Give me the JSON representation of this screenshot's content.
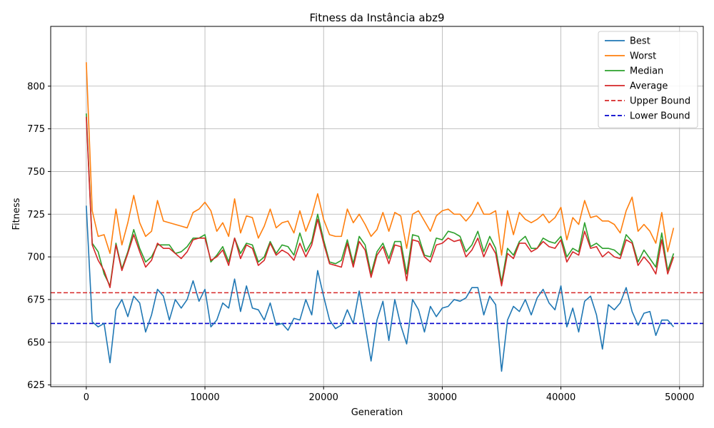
{
  "chart_data": {
    "type": "line",
    "title": "Fitness da Instância abz9",
    "xlabel": "Generation",
    "ylabel": "Fitness",
    "xlim": [
      -3000,
      52000
    ],
    "ylim": [
      624,
      835
    ],
    "xticks": [
      0,
      10000,
      20000,
      30000,
      40000,
      50000
    ],
    "yticks": [
      625,
      650,
      675,
      700,
      725,
      750,
      775,
      800
    ],
    "grid": true,
    "legend_position": "top-right",
    "x": [
      0,
      500,
      1000,
      1500,
      2000,
      2500,
      3000,
      3500,
      4000,
      4500,
      5000,
      5500,
      6000,
      6500,
      7000,
      7500,
      8000,
      8500,
      9000,
      9500,
      10000,
      10500,
      11000,
      11500,
      12000,
      12500,
      13000,
      13500,
      14000,
      14500,
      15000,
      15500,
      16000,
      16500,
      17000,
      17500,
      18000,
      18500,
      19000,
      19500,
      20000,
      20500,
      21000,
      21500,
      22000,
      22500,
      23000,
      23500,
      24000,
      24500,
      25000,
      25500,
      26000,
      26500,
      27000,
      27500,
      28000,
      28500,
      29000,
      29500,
      30000,
      30500,
      31000,
      31500,
      32000,
      32500,
      33000,
      33500,
      34000,
      34500,
      35000,
      35500,
      36000,
      36500,
      37000,
      37500,
      38000,
      38500,
      39000,
      39500,
      40000,
      40500,
      41000,
      41500,
      42000,
      42500,
      43000,
      43500,
      44000,
      44500,
      45000,
      45500,
      46000,
      46500,
      47000,
      47500,
      48000,
      48500,
      49000,
      49500
    ],
    "series": [
      {
        "name": "Best",
        "color": "#1f77b4",
        "dash": "solid",
        "values": [
          730,
          662,
          659,
          661,
          638,
          669,
          675,
          665,
          677,
          673,
          656,
          666,
          681,
          677,
          663,
          675,
          670,
          675,
          686,
          674,
          681,
          659,
          663,
          673,
          670,
          687,
          668,
          683,
          670,
          669,
          663,
          673,
          660,
          661,
          657,
          664,
          663,
          675,
          666,
          692,
          677,
          663,
          658,
          660,
          669,
          661,
          680,
          660,
          639,
          663,
          674,
          651,
          675,
          660,
          649,
          675,
          669,
          656,
          671,
          665,
          670,
          671,
          675,
          674,
          676,
          682,
          682,
          666,
          677,
          672,
          633,
          663,
          671,
          668,
          675,
          666,
          676,
          681,
          673,
          669,
          683,
          659,
          670,
          656,
          674,
          677,
          666,
          646,
          672,
          669,
          673,
          682,
          668,
          660,
          667,
          668,
          654,
          663,
          663,
          659
        ]
      },
      {
        "name": "Worst",
        "color": "#ff7f0e",
        "dash": "solid",
        "values": [
          814,
          727,
          712,
          713,
          702,
          728,
          707,
          720,
          736,
          720,
          712,
          715,
          733,
          721,
          720,
          719,
          718,
          717,
          726,
          728,
          732,
          727,
          715,
          720,
          712,
          734,
          714,
          724,
          723,
          711,
          718,
          728,
          717,
          720,
          721,
          714,
          727,
          715,
          724,
          737,
          722,
          713,
          712,
          712,
          728,
          720,
          725,
          719,
          712,
          716,
          726,
          715,
          726,
          724,
          705,
          725,
          727,
          721,
          715,
          724,
          727,
          728,
          725,
          725,
          721,
          725,
          732,
          725,
          725,
          727,
          701,
          727,
          713,
          726,
          722,
          720,
          722,
          725,
          720,
          723,
          729,
          710,
          723,
          719,
          733,
          723,
          724,
          721,
          721,
          719,
          714,
          727,
          735,
          715,
          719,
          715,
          708,
          726,
          703,
          717
        ]
      },
      {
        "name": "Median",
        "color": "#2ca02c",
        "dash": "solid",
        "values": [
          784,
          708,
          703,
          690,
          683,
          708,
          693,
          703,
          716,
          705,
          697,
          700,
          707,
          707,
          707,
          702,
          703,
          706,
          711,
          711,
          713,
          697,
          701,
          706,
          697,
          711,
          702,
          708,
          707,
          697,
          700,
          709,
          702,
          707,
          706,
          701,
          714,
          703,
          709,
          725,
          710,
          697,
          696,
          698,
          710,
          696,
          712,
          707,
          690,
          703,
          708,
          699,
          709,
          709,
          690,
          713,
          712,
          701,
          700,
          711,
          710,
          715,
          714,
          712,
          703,
          707,
          715,
          703,
          712,
          705,
          685,
          705,
          701,
          709,
          712,
          705,
          705,
          711,
          709,
          708,
          712,
          700,
          705,
          703,
          720,
          706,
          708,
          705,
          705,
          704,
          701,
          713,
          709,
          697,
          704,
          699,
          694,
          714,
          692,
          702
        ]
      },
      {
        "name": "Average",
        "color": "#d62728",
        "dash": "solid",
        "values": [
          782,
          707,
          698,
          692,
          682,
          707,
          692,
          702,
          713,
          703,
          694,
          698,
          708,
          705,
          705,
          702,
          699,
          703,
          710,
          711,
          711,
          698,
          700,
          704,
          695,
          711,
          699,
          707,
          705,
          695,
          698,
          708,
          701,
          704,
          702,
          698,
          708,
          700,
          707,
          722,
          708,
          696,
          695,
          694,
          708,
          694,
          709,
          704,
          688,
          701,
          706,
          696,
          707,
          706,
          686,
          710,
          709,
          700,
          697,
          707,
          708,
          711,
          709,
          710,
          700,
          704,
          711,
          700,
          708,
          702,
          683,
          702,
          699,
          708,
          708,
          703,
          705,
          709,
          706,
          705,
          710,
          697,
          703,
          701,
          715,
          705,
          706,
          700,
          703,
          700,
          699,
          710,
          708,
          695,
          700,
          696,
          690,
          710,
          690,
          700
        ]
      }
    ],
    "bounds": [
      {
        "name": "Upper Bound",
        "value": 679,
        "color": "#d62728",
        "dash": "dashed"
      },
      {
        "name": "Lower Bound",
        "value": 661,
        "color": "#0000cd",
        "dash": "dashed"
      }
    ]
  }
}
